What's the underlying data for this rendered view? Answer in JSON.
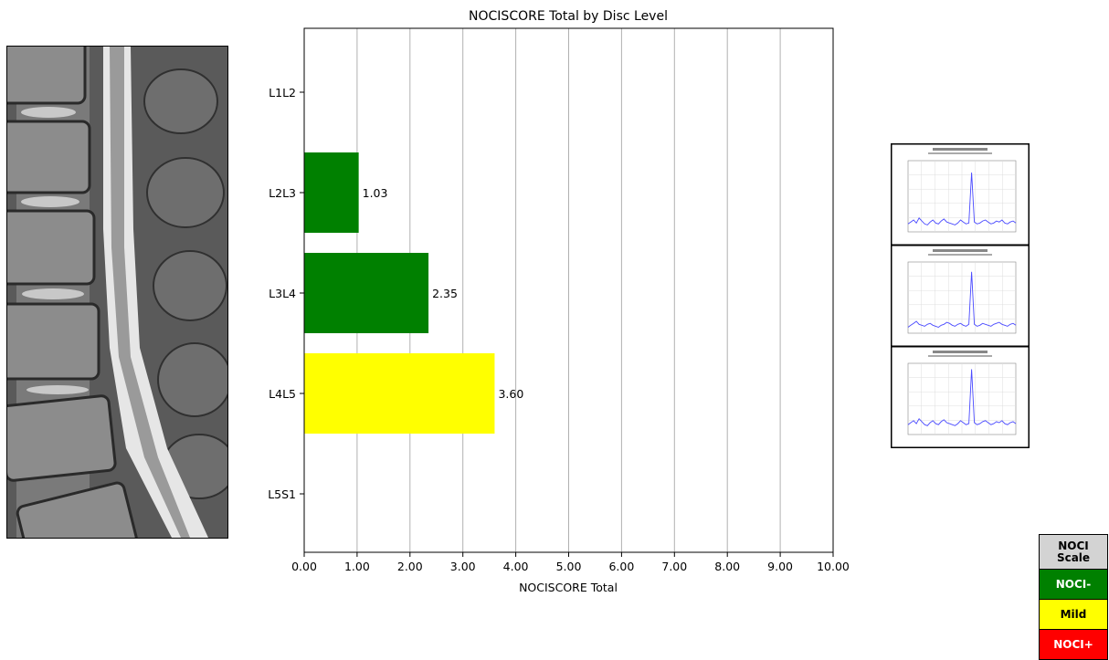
{
  "chart_data": {
    "type": "bar",
    "orientation": "horizontal",
    "title": "NOCISCORE Total by Disc Level",
    "xlabel": "NOCISCORE Total",
    "ylabel": "",
    "xlim": [
      0,
      10
    ],
    "xticks": [
      "0.00",
      "1.00",
      "2.00",
      "3.00",
      "4.00",
      "5.00",
      "6.00",
      "7.00",
      "8.00",
      "9.00",
      "10.00"
    ],
    "categories": [
      "L1L2",
      "L2L3",
      "L3L4",
      "L4L5",
      "L5S1"
    ],
    "values": [
      null,
      1.03,
      2.35,
      3.6,
      null
    ],
    "value_labels": [
      "",
      "1.03",
      "2.35",
      "3.60",
      ""
    ],
    "bar_colors": [
      "#008000",
      "#008000",
      "#008000",
      "#ffff00",
      "#008000"
    ],
    "grid": "vertical"
  },
  "legend": {
    "title_line1": "NOCI",
    "title_line2": "Scale",
    "items": [
      {
        "label": "NOCI-",
        "color": "#008000",
        "text_color": "#ffffff"
      },
      {
        "label": "Mild",
        "color": "#ffff00",
        "text_color": "#000000"
      },
      {
        "label": "NOCI+",
        "color": "#ff0000",
        "text_color": "#ffffff"
      }
    ]
  },
  "colors": {
    "spectrum_line": "#4a4aff",
    "mri_dark": "#3a3a3a",
    "mri_light": "#d8d8d8"
  }
}
